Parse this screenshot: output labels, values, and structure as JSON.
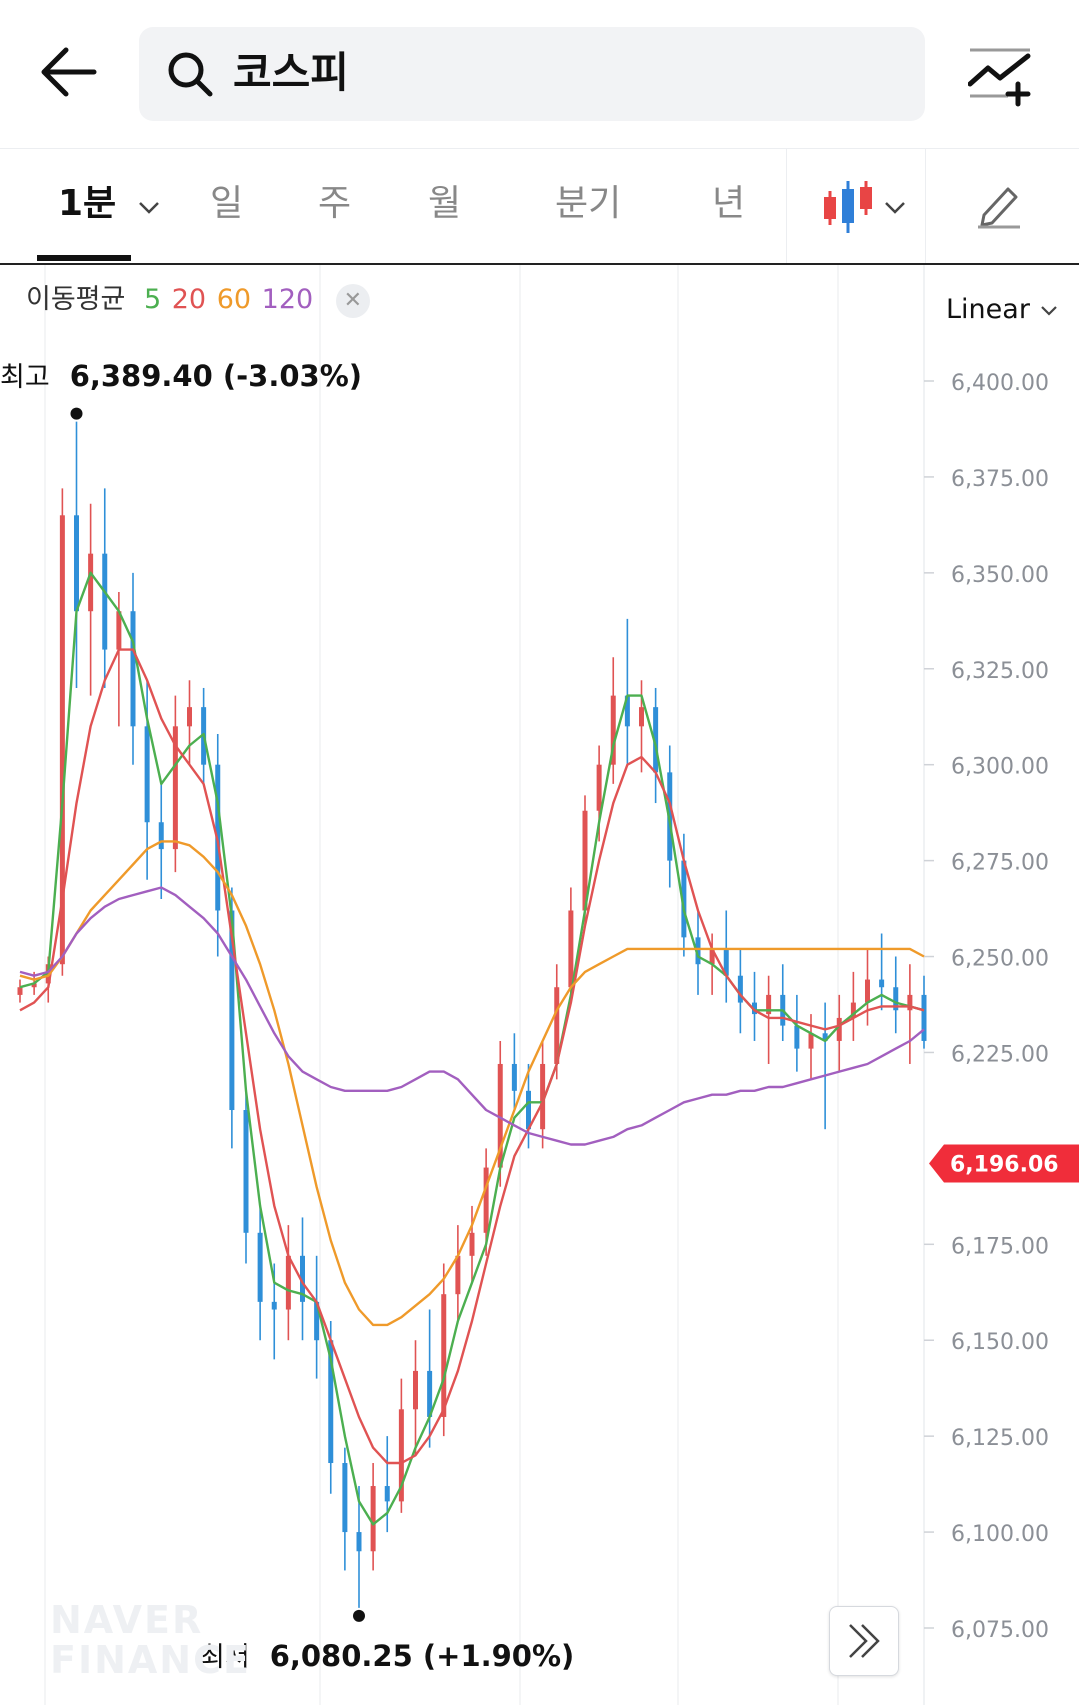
{
  "header": {
    "search_query": "코스피",
    "back_icon": "arrow-left-icon",
    "search_icon": "search-icon",
    "compare_icon": "chart-add-icon"
  },
  "tabs": [
    {
      "label": "1분",
      "active": true,
      "has_dropdown": true
    },
    {
      "label": "일",
      "active": false
    },
    {
      "label": "주",
      "active": false
    },
    {
      "label": "월",
      "active": false
    },
    {
      "label": "분기",
      "active": false
    },
    {
      "label": "년",
      "active": false
    }
  ],
  "chart_type_icon": "candlestick-icon",
  "draw_icon": "pencil-icon",
  "ma_legend": {
    "title": "이동평균",
    "periods": [
      {
        "label": "5",
        "color": "#4caf50"
      },
      {
        "label": "20",
        "color": "#e05353"
      },
      {
        "label": "60",
        "color": "#ef9a2a"
      },
      {
        "label": "120",
        "color": "#a25fbf"
      }
    ]
  },
  "scale": {
    "label": "Linear"
  },
  "high": {
    "label": "최고",
    "value": "6,389.40 (-3.03%)"
  },
  "low": {
    "label": "최저",
    "value": "6,080.25 (+1.90%)"
  },
  "current_price": {
    "label": "6,196.06",
    "value": 6196.06,
    "color": "#f02d3a"
  },
  "watermark": {
    "line1": "NAVER",
    "line2": "FINANCE"
  },
  "colors": {
    "up": "#e05353",
    "down": "#2f8fd8"
  },
  "chart_data": {
    "type": "candlestick",
    "title": "",
    "y_ticks": [
      "6,400.00",
      "6,375.00",
      "6,350.00",
      "6,325.00",
      "6,300.00",
      "6,275.00",
      "6,250.00",
      "6,225.00",
      "6,175.00",
      "6,150.00",
      "6,125.00",
      "6,100.00",
      "6,075.00"
    ],
    "y_tick_values": [
      6400,
      6375,
      6350,
      6325,
      6300,
      6275,
      6250,
      6225,
      6175,
      6150,
      6125,
      6100,
      6075
    ],
    "ylim": [
      6060,
      6420
    ],
    "grid": true,
    "ohlc_approx": [
      [
        6240,
        6244,
        6238,
        6242
      ],
      [
        6242,
        6246,
        6240,
        6243
      ],
      [
        6243,
        6250,
        6238,
        6248
      ],
      [
        6248,
        6372,
        6245,
        6365
      ],
      [
        6365,
        6389.4,
        6320,
        6340
      ],
      [
        6340,
        6368,
        6318,
        6355
      ],
      [
        6355,
        6372,
        6320,
        6330
      ],
      [
        6330,
        6345,
        6310,
        6340
      ],
      [
        6340,
        6350,
        6300,
        6310
      ],
      [
        6310,
        6322,
        6270,
        6285
      ],
      [
        6285,
        6295,
        6265,
        6278
      ],
      [
        6278,
        6318,
        6272,
        6310
      ],
      [
        6310,
        6322,
        6300,
        6315
      ],
      [
        6315,
        6320,
        6295,
        6300
      ],
      [
        6300,
        6308,
        6250,
        6262
      ],
      [
        6262,
        6268,
        6200,
        6210
      ],
      [
        6210,
        6215,
        6170,
        6178
      ],
      [
        6178,
        6185,
        6150,
        6160
      ],
      [
        6160,
        6170,
        6145,
        6158
      ],
      [
        6158,
        6180,
        6150,
        6172
      ],
      [
        6172,
        6182,
        6150,
        6160
      ],
      [
        6160,
        6172,
        6140,
        6150
      ],
      [
        6150,
        6155,
        6110,
        6118
      ],
      [
        6118,
        6122,
        6090,
        6100
      ],
      [
        6100,
        6112,
        6080.25,
        6095
      ],
      [
        6095,
        6118,
        6090,
        6112
      ],
      [
        6112,
        6125,
        6100,
        6108
      ],
      [
        6108,
        6140,
        6105,
        6132
      ],
      [
        6132,
        6150,
        6120,
        6142
      ],
      [
        6142,
        6158,
        6122,
        6130
      ],
      [
        6130,
        6170,
        6125,
        6162
      ],
      [
        6162,
        6180,
        6155,
        6172
      ],
      [
        6172,
        6185,
        6165,
        6178
      ],
      [
        6178,
        6200,
        6172,
        6195
      ],
      [
        6195,
        6228,
        6190,
        6222
      ],
      [
        6222,
        6230,
        6210,
        6215
      ],
      [
        6215,
        6222,
        6200,
        6205
      ],
      [
        6205,
        6228,
        6200,
        6222
      ],
      [
        6222,
        6248,
        6218,
        6242
      ],
      [
        6242,
        6268,
        6238,
        6262
      ],
      [
        6262,
        6292,
        6258,
        6288
      ],
      [
        6288,
        6305,
        6280,
        6300
      ],
      [
        6300,
        6328,
        6295,
        6318
      ],
      [
        6318,
        6338,
        6300,
        6310
      ],
      [
        6310,
        6322,
        6298,
        6315
      ],
      [
        6315,
        6320,
        6290,
        6298
      ],
      [
        6298,
        6305,
        6268,
        6275
      ],
      [
        6275,
        6282,
        6250,
        6255
      ],
      [
        6255,
        6262,
        6240,
        6248
      ],
      [
        6248,
        6256,
        6240,
        6252
      ],
      [
        6252,
        6262,
        6238,
        6245
      ],
      [
        6245,
        6252,
        6230,
        6238
      ],
      [
        6238,
        6246,
        6228,
        6235
      ],
      [
        6235,
        6245,
        6222,
        6240
      ],
      [
        6240,
        6248,
        6228,
        6232
      ],
      [
        6232,
        6240,
        6220,
        6226
      ],
      [
        6226,
        6235,
        6218,
        6230
      ],
      [
        6230,
        6238,
        6205,
        6228
      ],
      [
        6228,
        6240,
        6220,
        6234
      ],
      [
        6234,
        6246,
        6228,
        6238
      ],
      [
        6238,
        6252,
        6232,
        6244
      ],
      [
        6244,
        6256,
        6236,
        6242
      ],
      [
        6242,
        6250,
        6230,
        6236
      ],
      [
        6236,
        6248,
        6222,
        6240
      ],
      [
        6240,
        6245,
        6226,
        6228
      ]
    ],
    "series": [
      {
        "name": "5",
        "color": "#4caf50",
        "values": [
          6242,
          6243,
          6246,
          6290,
          6340,
          6350,
          6345,
          6340,
          6332,
          6312,
          6295,
          6300,
          6305,
          6308,
          6290,
          6260,
          6215,
          6185,
          6165,
          6163,
          6162,
          6160,
          6145,
          6125,
          6108,
          6102,
          6105,
          6112,
          6122,
          6130,
          6140,
          6155,
          6165,
          6175,
          6195,
          6208,
          6212,
          6212,
          6222,
          6240,
          6262,
          6285,
          6305,
          6318,
          6318,
          6305,
          6285,
          6262,
          6250,
          6248,
          6245,
          6240,
          6236,
          6236,
          6236,
          6232,
          6230,
          6228,
          6232,
          6235,
          6238,
          6240,
          6238,
          6237,
          6236
        ]
      },
      {
        "name": "20",
        "color": "#e05353",
        "values": [
          6236,
          6238,
          6242,
          6265,
          6290,
          6310,
          6322,
          6330,
          6330,
          6322,
          6312,
          6305,
          6300,
          6295,
          6280,
          6255,
          6230,
          6205,
          6185,
          6172,
          6165,
          6160,
          6150,
          6140,
          6130,
          6122,
          6118,
          6118,
          6120,
          6125,
          6132,
          6142,
          6155,
          6170,
          6185,
          6198,
          6205,
          6212,
          6222,
          6238,
          6258,
          6275,
          6290,
          6300,
          6302,
          6298,
          6290,
          6275,
          6262,
          6252,
          6245,
          6240,
          6236,
          6234,
          6234,
          6233,
          6232,
          6231,
          6232,
          6234,
          6236,
          6237,
          6237,
          6237,
          6236
        ]
      },
      {
        "name": "60",
        "color": "#ef9a2a",
        "values": [
          6245,
          6244,
          6245,
          6250,
          6256,
          6262,
          6266,
          6270,
          6274,
          6278,
          6280,
          6280,
          6279,
          6276,
          6272,
          6266,
          6258,
          6248,
          6236,
          6222,
          6206,
          6190,
          6176,
          6165,
          6158,
          6154,
          6154,
          6156,
          6159,
          6162,
          6166,
          6172,
          6180,
          6190,
          6200,
          6210,
          6220,
          6228,
          6236,
          6242,
          6246,
          6248,
          6250,
          6252,
          6252,
          6252,
          6252,
          6252,
          6252,
          6252,
          6252,
          6252,
          6252,
          6252,
          6252,
          6252,
          6252,
          6252,
          6252,
          6252,
          6252,
          6252,
          6252,
          6252,
          6250
        ]
      },
      {
        "name": "120",
        "color": "#a25fbf",
        "values": [
          6246,
          6245,
          6246,
          6250,
          6256,
          6260,
          6263,
          6265,
          6266,
          6267,
          6268,
          6266,
          6263,
          6260,
          6256,
          6250,
          6244,
          6237,
          6230,
          6224,
          6220,
          6218,
          6216,
          6215,
          6215,
          6215,
          6215,
          6216,
          6218,
          6220,
          6220,
          6218,
          6214,
          6210,
          6208,
          6206,
          6204,
          6203,
          6202,
          6201,
          6201,
          6202,
          6203,
          6205,
          6206,
          6208,
          6210,
          6212,
          6213,
          6214,
          6214,
          6215,
          6215,
          6216,
          6216,
          6217,
          6218,
          6219,
          6220,
          6221,
          6222,
          6224,
          6226,
          6228,
          6231
        ]
      }
    ]
  }
}
